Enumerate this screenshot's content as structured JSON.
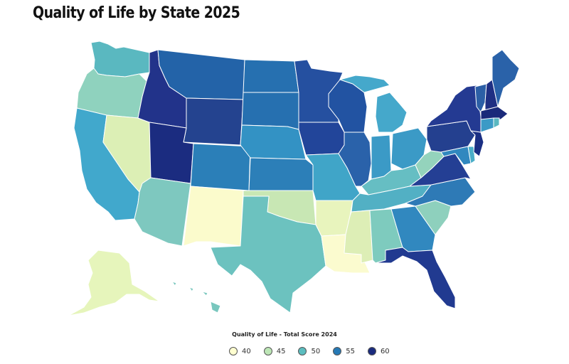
{
  "title": "Quality of Life by State 2025",
  "legend": {
    "title": "Quality of Life - Total Score 2024",
    "items": [
      {
        "label": "40",
        "color": "#ffffd0"
      },
      {
        "label": "45",
        "color": "#bde6b6"
      },
      {
        "label": "50",
        "color": "#5cbdbf"
      },
      {
        "label": "55",
        "color": "#2679b5"
      },
      {
        "label": "60",
        "color": "#1a2b7e"
      }
    ]
  },
  "states": {
    "WA": "#5ab8c0",
    "OR": "#8fd2be",
    "CA": "#41a8cc",
    "NV": "#dcefb5",
    "ID": "#22338a",
    "MT": "#2363a8",
    "WY": "#24438f",
    "UT": "#1b2c80",
    "AZ": "#7ec8bf",
    "CO": "#2b7fb8",
    "NM": "#fbfbcc",
    "ND": "#2670b0",
    "SD": "#2670b0",
    "NE": "#3392c4",
    "KS": "#2c7fb8",
    "OK": "#c8e7b4",
    "TX": "#6cc2bf",
    "MN": "#2550a0",
    "IA": "#22459a",
    "MO": "#40a5c8",
    "AR": "#e8f4bd",
    "LA": "#fbfbcf",
    "WI": "#2253a2",
    "IL": "#2a62aa",
    "MI": "#45a8cb",
    "IN": "#3b9ac6",
    "OH": "#3b9ac6",
    "KY": "#66bec3",
    "TN": "#52b0c4",
    "MS": "#ddeeb6",
    "AL": "#7ecbbe",
    "GA": "#3188bf",
    "FL": "#213a90",
    "SC": "#8ed0bd",
    "NC": "#2e7ab6",
    "VA": "#243f94",
    "WV": "#94d3bc",
    "PA": "#24408f",
    "NY": "#243a92",
    "VT": "#2c5fa6",
    "NH": "#1f2f83",
    "ME": "#2a62a9",
    "MA": "#1a2a7a",
    "CT": "#3b9ac6",
    "RI": "#5ab8c0",
    "NJ": "#1a2f84",
    "DE": "#4aaec8",
    "MD": "#3188bf",
    "AK": "#e6f5bb",
    "HI": "#79c7be"
  }
}
